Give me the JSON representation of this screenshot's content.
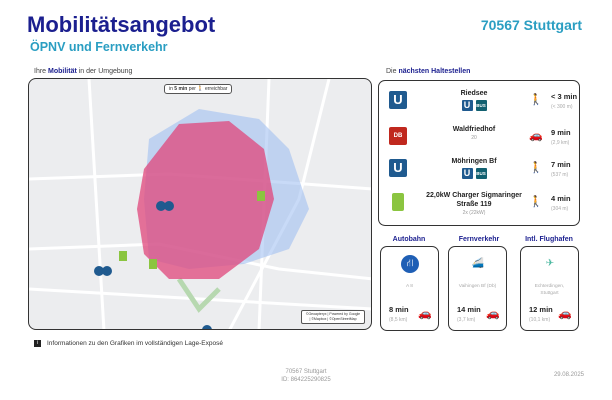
{
  "header": {
    "title": "Mobilitätsangebot",
    "subtitle": "ÖPNV und Fernverkehr",
    "location": "70567 Stuttgart"
  },
  "map": {
    "label_pre": "Ihre ",
    "label_bold": "Mobilität",
    "label_post": " in der Umgebung",
    "badge_pre": "in ",
    "badge_bold": "5 min",
    "badge_post": " per 🚶 erreichbar",
    "attribution": "©Geoapteryx | Powered by Google | ©Mapbox | ©OpenStreetMap",
    "isochrone_color": "#e0457b",
    "walk_area_color": "#9bbcf0"
  },
  "stops": {
    "label_pre": "Die ",
    "label_bold": "nächsten Haltestellen",
    "items": [
      {
        "name": "Riedsee",
        "sub": "",
        "icon": "u-bahn-icon",
        "chips": [
          "U",
          "BUS"
        ],
        "mode": "walk",
        "time": "< 3 min",
        "dist": "(< 300 m)"
      },
      {
        "name": "Waldfriedhof",
        "sub": "20",
        "icon": "db-train-icon",
        "chips": [],
        "mode": "car",
        "time": "9 min",
        "dist": "(2,9 km)"
      },
      {
        "name": "Möhringen Bf",
        "sub": "",
        "icon": "u-bahn-icon",
        "chips": [
          "U",
          "BUS"
        ],
        "mode": "walk",
        "time": "7 min",
        "dist": "(537 m)"
      },
      {
        "name": "22,0kW Charger Sigmaringer Straße 119",
        "sub": "2x (22kW)",
        "icon": "ev-charger-icon",
        "chips": [],
        "mode": "walk",
        "time": "4 min",
        "dist": "(304 m)"
      }
    ]
  },
  "cards": [
    {
      "title": "Autobahn",
      "name": "A 8",
      "time": "8 min",
      "dist": "(8,5 km)",
      "icon": "autobahn-icon"
    },
    {
      "title": "Fernverkehr",
      "name": "Vaihingen Bf (Db)",
      "time": "14 min",
      "dist": "(3,7 km)",
      "icon": "train-icon"
    },
    {
      "title": "Intl. Flughafen",
      "name": "Echterdingen, Stuttgart",
      "time": "12 min",
      "dist": "(10,1 km)",
      "icon": "airplane-icon"
    }
  ],
  "info": "Informationen zu den Grafiken im vollständigen Lage-Exposé",
  "footer": {
    "city": "70567 Stuttgart",
    "id": "ID: 864225290825",
    "date": "29.08.2025"
  }
}
